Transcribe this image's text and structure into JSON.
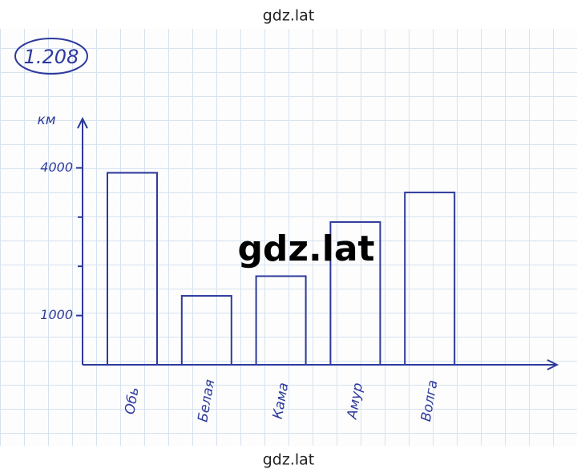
{
  "chart_data": {
    "type": "bar",
    "title": "1.208",
    "y_label": "км",
    "categories": [
      "Обь",
      "Белая",
      "Кама",
      "Амур",
      "Волга"
    ],
    "values": [
      3900,
      1400,
      1800,
      2900,
      3500
    ],
    "color": "#2d3a9c",
    "ylim": [
      0,
      5000
    ],
    "yticks": [
      1000,
      4000
    ],
    "minor_yticks": [
      2000,
      3000
    ]
  },
  "watermark": [
    "gdz.lat",
    "gdz.lat",
    "gdz.lat"
  ]
}
